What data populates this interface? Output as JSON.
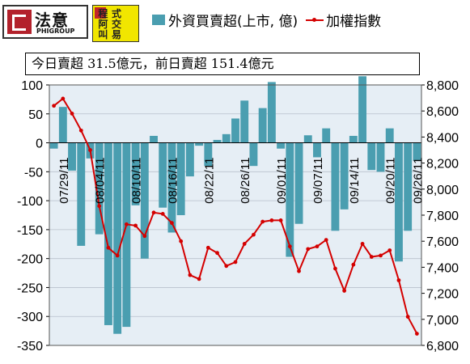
{
  "logos": {
    "left": {
      "name": "法意",
      "sub": "PHIGROUP"
    },
    "right": {
      "badge": "法意",
      "chars": [
        "程",
        "式",
        "",
        "阿",
        "交",
        "",
        "叫",
        "易",
        ""
      ]
    }
  },
  "legend": {
    "bar_label": "外資買賣超(上市, 億)",
    "line_label": "加權指數"
  },
  "subtitle": "今日賣超 31.5億元，前日賣超 151.4億元",
  "colors": {
    "bar": "#4a9eb0",
    "line": "#d40000",
    "plot_bg": "#e6eef5"
  },
  "chart_data": {
    "type": "bar+line",
    "series": [
      {
        "name": "外資買賣超(上市, 億)",
        "axis": "left",
        "type": "bar",
        "values": [
          -10,
          62,
          -48,
          -178,
          -27,
          -158,
          -315,
          -330,
          -318,
          -108,
          -200,
          12,
          -112,
          -155,
          -125,
          -58,
          -5,
          -40,
          5,
          15,
          42,
          73,
          -40,
          60,
          105,
          -10,
          -197,
          -140,
          13,
          -25,
          25,
          -152,
          -115,
          12,
          115,
          -47,
          -50,
          25,
          -205,
          -152,
          -31
        ]
      },
      {
        "name": "加權指數",
        "axis": "right",
        "type": "line",
        "values": [
          8640,
          8695,
          8580,
          8450,
          8300,
          7870,
          7550,
          7490,
          7730,
          7720,
          7640,
          7820,
          7810,
          7740,
          7600,
          7340,
          7310,
          7550,
          7510,
          7410,
          7440,
          7580,
          7650,
          7750,
          7760,
          7760,
          7560,
          7370,
          7540,
          7560,
          7610,
          7390,
          7220,
          7420,
          7580,
          7480,
          7490,
          7530,
          7300,
          7020,
          6890
        ]
      }
    ],
    "x_tick_labels": [
      "07/29/11",
      "08/04/11",
      "08/10/11",
      "08/16/11",
      "08/22/11",
      "08/26/11",
      "09/01/11",
      "09/07/11",
      "09/14/11",
      "09/20/11",
      "09/26/11"
    ],
    "x_tick_indices": [
      1,
      5,
      9,
      13,
      17,
      21,
      25,
      29,
      33,
      37,
      40
    ],
    "y_left": {
      "min": -350,
      "max": 100,
      "ticks": [
        100,
        50,
        0,
        -50,
        -100,
        -150,
        -200,
        -250,
        -300,
        -350
      ]
    },
    "y_right": {
      "min": 6800,
      "max": 8800,
      "ticks": [
        "8,800",
        "8,600",
        "8,400",
        "8,200",
        "8,000",
        "7,800",
        "7,600",
        "7,400",
        "7,200",
        "7,000",
        "6,800"
      ],
      "tick_values": [
        8800,
        8600,
        8400,
        8200,
        8000,
        7800,
        7600,
        7400,
        7200,
        7000,
        6800
      ]
    },
    "grid": "horizontal",
    "legend": "top"
  }
}
